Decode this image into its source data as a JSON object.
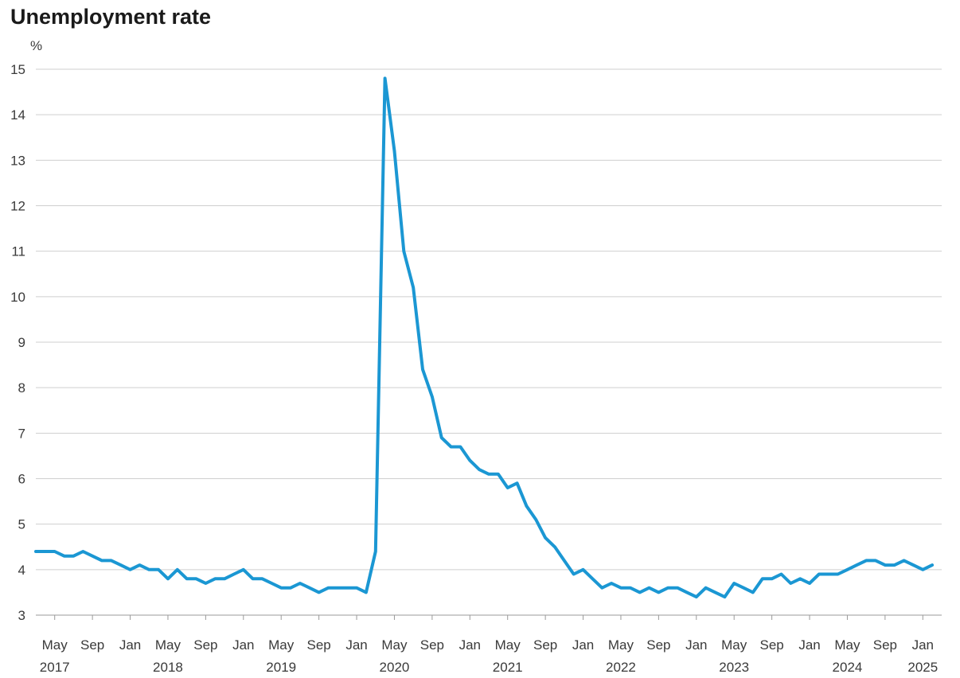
{
  "chart_data": {
    "type": "line",
    "title": "Unemployment rate",
    "ylabel": "%",
    "xlabel": "",
    "ylim": [
      3,
      15
    ],
    "yticks": [
      3,
      4,
      5,
      6,
      7,
      8,
      9,
      10,
      11,
      12,
      13,
      14,
      15
    ],
    "x_tick_labels": [
      {
        "month": "May",
        "year": "2017",
        "date": "2017-05"
      },
      {
        "month": "Sep",
        "year": "",
        "date": "2017-09"
      },
      {
        "month": "Jan",
        "year": "",
        "date": "2018-01"
      },
      {
        "month": "May",
        "year": "2018",
        "date": "2018-05"
      },
      {
        "month": "Sep",
        "year": "",
        "date": "2018-09"
      },
      {
        "month": "Jan",
        "year": "",
        "date": "2019-01"
      },
      {
        "month": "May",
        "year": "2019",
        "date": "2019-05"
      },
      {
        "month": "Sep",
        "year": "",
        "date": "2019-09"
      },
      {
        "month": "Jan",
        "year": "",
        "date": "2020-01"
      },
      {
        "month": "May",
        "year": "2020",
        "date": "2020-05"
      },
      {
        "month": "Sep",
        "year": "",
        "date": "2020-09"
      },
      {
        "month": "Jan",
        "year": "",
        "date": "2021-01"
      },
      {
        "month": "May",
        "year": "2021",
        "date": "2021-05"
      },
      {
        "month": "Sep",
        "year": "",
        "date": "2021-09"
      },
      {
        "month": "Jan",
        "year": "",
        "date": "2022-01"
      },
      {
        "month": "May",
        "year": "2022",
        "date": "2022-05"
      },
      {
        "month": "Sep",
        "year": "",
        "date": "2022-09"
      },
      {
        "month": "Jan",
        "year": "",
        "date": "2023-01"
      },
      {
        "month": "May",
        "year": "2023",
        "date": "2023-05"
      },
      {
        "month": "Sep",
        "year": "",
        "date": "2023-09"
      },
      {
        "month": "Jan",
        "year": "",
        "date": "2024-01"
      },
      {
        "month": "May",
        "year": "2024",
        "date": "2024-05"
      },
      {
        "month": "Sep",
        "year": "",
        "date": "2024-09"
      },
      {
        "month": "Jan",
        "year": "2025",
        "date": "2025-01"
      }
    ],
    "xlim": [
      "2017-03",
      "2025-03"
    ],
    "grid": true,
    "series": [
      {
        "color": "#1b97d3",
        "x": [
          "2017-03",
          "2017-04",
          "2017-05",
          "2017-06",
          "2017-07",
          "2017-08",
          "2017-09",
          "2017-10",
          "2017-11",
          "2017-12",
          "2018-01",
          "2018-02",
          "2018-03",
          "2018-04",
          "2018-05",
          "2018-06",
          "2018-07",
          "2018-08",
          "2018-09",
          "2018-10",
          "2018-11",
          "2018-12",
          "2019-01",
          "2019-02",
          "2019-03",
          "2019-04",
          "2019-05",
          "2019-06",
          "2019-07",
          "2019-08",
          "2019-09",
          "2019-10",
          "2019-11",
          "2019-12",
          "2020-01",
          "2020-02",
          "2020-03",
          "2020-04",
          "2020-05",
          "2020-06",
          "2020-07",
          "2020-08",
          "2020-09",
          "2020-10",
          "2020-11",
          "2020-12",
          "2021-01",
          "2021-02",
          "2021-03",
          "2021-04",
          "2021-05",
          "2021-06",
          "2021-07",
          "2021-08",
          "2021-09",
          "2021-10",
          "2021-11",
          "2021-12",
          "2022-01",
          "2022-02",
          "2022-03",
          "2022-04",
          "2022-05",
          "2022-06",
          "2022-07",
          "2022-08",
          "2022-09",
          "2022-10",
          "2022-11",
          "2022-12",
          "2023-01",
          "2023-02",
          "2023-03",
          "2023-04",
          "2023-05",
          "2023-06",
          "2023-07",
          "2023-08",
          "2023-09",
          "2023-10",
          "2023-11",
          "2023-12",
          "2024-01",
          "2024-02",
          "2024-03",
          "2024-04",
          "2024-05",
          "2024-06",
          "2024-07",
          "2024-08",
          "2024-09",
          "2024-10",
          "2024-11",
          "2024-12",
          "2025-01",
          "2025-02"
        ],
        "values": [
          4.4,
          4.4,
          4.4,
          4.3,
          4.3,
          4.4,
          4.3,
          4.2,
          4.2,
          4.1,
          4.0,
          4.1,
          4.0,
          4.0,
          3.8,
          4.0,
          3.8,
          3.8,
          3.7,
          3.8,
          3.8,
          3.9,
          4.0,
          3.8,
          3.8,
          3.7,
          3.6,
          3.6,
          3.7,
          3.6,
          3.5,
          3.6,
          3.6,
          3.6,
          3.6,
          3.5,
          4.4,
          14.8,
          13.2,
          11.0,
          10.2,
          8.4,
          7.8,
          6.9,
          6.7,
          6.7,
          6.4,
          6.2,
          6.1,
          6.1,
          5.8,
          5.9,
          5.4,
          5.1,
          4.7,
          4.5,
          4.2,
          3.9,
          4.0,
          3.8,
          3.6,
          3.7,
          3.6,
          3.6,
          3.5,
          3.6,
          3.5,
          3.6,
          3.6,
          3.5,
          3.4,
          3.6,
          3.5,
          3.4,
          3.7,
          3.6,
          3.5,
          3.8,
          3.8,
          3.9,
          3.7,
          3.8,
          3.7,
          3.9,
          3.9,
          3.9,
          4.0,
          4.1,
          4.2,
          4.2,
          4.1,
          4.1,
          4.2,
          4.1,
          4.0,
          4.1
        ]
      }
    ]
  }
}
